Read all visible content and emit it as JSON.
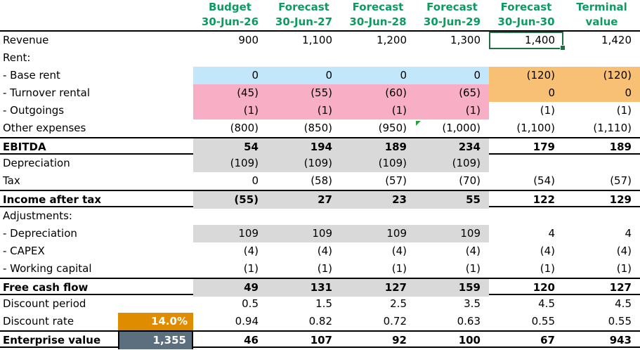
{
  "colors": {
    "header_text": "#0D9B62",
    "selection_border": "#1F7145",
    "error_triangle": "#2E9E44",
    "highlight_blue": "#C3E7FA",
    "highlight_pink": "#F8AFC5",
    "highlight_orange": "#F8C074",
    "highlight_gray": "#D9D9D9",
    "rate_cell_orange": "#E08C00",
    "value_cell_slate": "#5B6F7E"
  },
  "sheet": {
    "header": {
      "columns": [
        {
          "line1": "Budget",
          "line2": "30-Jun-26"
        },
        {
          "line1": "Forecast",
          "line2": "30-Jun-27"
        },
        {
          "line1": "Forecast",
          "line2": "30-Jun-28"
        },
        {
          "line1": "Forecast",
          "line2": "30-Jun-29"
        },
        {
          "line1": "Forecast",
          "line2": "30-Jun-30"
        },
        {
          "line1": "Terminal",
          "line2": "value"
        }
      ]
    },
    "selected_cell": {
      "row": "Revenue",
      "column": "30-Jun-30",
      "value": "1,400"
    },
    "rows": [
      {
        "label": "Revenue",
        "cells": [
          "900",
          "1,100",
          "1,200",
          "1,300",
          "1,400",
          "1,420"
        ],
        "selected": 4
      },
      {
        "label": "Rent:",
        "cells": [
          "",
          "",
          "",
          "",
          "",
          ""
        ]
      },
      {
        "label": "- Base rent",
        "cells": [
          "0",
          "0",
          "0",
          "0",
          "(120)",
          "(120)"
        ],
        "fills": [
          "blue",
          "blue",
          "blue",
          "blue",
          "orange",
          "orange"
        ]
      },
      {
        "label": "- Turnover rental",
        "cells": [
          "(45)",
          "(55)",
          "(60)",
          "(65)",
          "0",
          "0"
        ],
        "fills": [
          "pink",
          "pink",
          "pink",
          "pink",
          "orange",
          "orange"
        ]
      },
      {
        "label": "- Outgoings",
        "cells": [
          "(1)",
          "(1)",
          "(1)",
          "(1)",
          "(1)",
          "(1)"
        ],
        "fills": [
          "pink",
          "pink",
          "pink",
          "pink",
          "",
          ""
        ]
      },
      {
        "label": "Other expenses",
        "cells": [
          "(800)",
          "(850)",
          "(950)",
          "(1,000)",
          "(1,100)",
          "(1,110)"
        ],
        "marker": 3
      },
      {
        "label": "EBITDA",
        "bold": true,
        "border": "tb",
        "cells": [
          "54",
          "194",
          "189",
          "234",
          "179",
          "189"
        ],
        "fills": [
          "gray",
          "gray",
          "gray",
          "gray",
          "",
          ""
        ]
      },
      {
        "label": "Depreciation",
        "cells": [
          "(109)",
          "(109)",
          "(109)",
          "(109)",
          "",
          ""
        ],
        "fills": [
          "gray",
          "gray",
          "gray",
          "gray",
          "",
          ""
        ]
      },
      {
        "label": "Tax",
        "cells": [
          "0",
          "(58)",
          "(57)",
          "(70)",
          "(54)",
          "(57)"
        ]
      },
      {
        "label": "Income after tax",
        "bold": true,
        "border": "tb",
        "cells": [
          "(55)",
          "27",
          "23",
          "55",
          "122",
          "129"
        ],
        "fills": [
          "gray",
          "gray",
          "gray",
          "gray",
          "",
          ""
        ]
      },
      {
        "label": "Adjustments:",
        "cells": [
          "",
          "",
          "",
          "",
          "",
          ""
        ]
      },
      {
        "label": "- Depreciation",
        "cells": [
          "109",
          "109",
          "109",
          "109",
          "4",
          "4"
        ],
        "fills": [
          "gray",
          "gray",
          "gray",
          "gray",
          "",
          ""
        ]
      },
      {
        "label": "- CAPEX",
        "cells": [
          "(4)",
          "(4)",
          "(4)",
          "(4)",
          "(4)",
          "(4)"
        ]
      },
      {
        "label": "- Working capital",
        "cells": [
          "(1)",
          "(1)",
          "(1)",
          "(1)",
          "(1)",
          "(1)"
        ]
      },
      {
        "label": "Free cash flow",
        "bold": true,
        "border": "tb",
        "cells": [
          "49",
          "131",
          "127",
          "159",
          "120",
          "127"
        ],
        "fills": [
          "gray",
          "gray",
          "gray",
          "gray",
          "",
          ""
        ]
      },
      {
        "label": "Discount period",
        "cells": [
          "0.5",
          "1.5",
          "2.5",
          "3.5",
          "4.5",
          "4.5"
        ]
      },
      {
        "label": "Discount rate",
        "b_cell": {
          "text": "14.0%",
          "style": "orange-solid"
        },
        "cells": [
          "0.94",
          "0.82",
          "0.72",
          "0.63",
          "0.55",
          "0.55"
        ]
      },
      {
        "label": "Enterprise value",
        "bold": true,
        "border": "tb",
        "b_cell": {
          "text": "1,355",
          "style": "slate"
        },
        "cells": [
          "46",
          "107",
          "92",
          "100",
          "67",
          "943"
        ]
      }
    ]
  }
}
